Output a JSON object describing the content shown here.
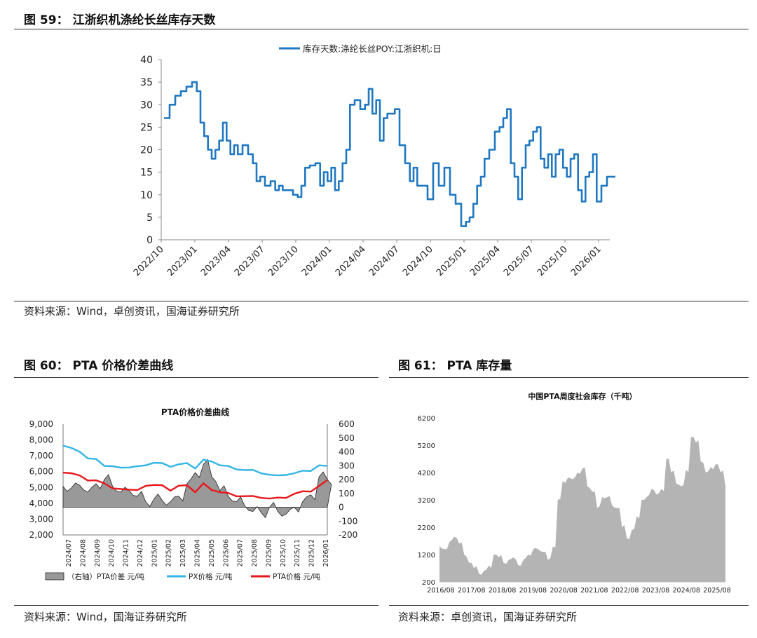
{
  "fig59": {
    "title": "图 59：  江浙织机涤纶长丝库存天数",
    "source": "资料来源：Wind，卓创资讯，国海证券研究所",
    "chart_data": {
      "type": "line",
      "series": [
        {
          "name": "库存天数:涤纶长丝POY:江浙织机:日",
          "color": "#1f78c1",
          "points": [
            [
              "2022/10",
              27
            ],
            [
              "2022/10",
              30
            ],
            [
              "2022/11",
              32
            ],
            [
              "2022/11",
              33
            ],
            [
              "2022/12",
              34
            ],
            [
              "2022/12",
              35
            ],
            [
              "2023/01",
              33
            ],
            [
              "2023/01",
              26
            ],
            [
              "2023/01",
              23
            ],
            [
              "2023/02",
              20
            ],
            [
              "2023/02",
              18
            ],
            [
              "2023/02",
              20
            ],
            [
              "2023/03",
              22
            ],
            [
              "2023/03",
              26
            ],
            [
              "2023/03",
              22
            ],
            [
              "2023/04",
              19
            ],
            [
              "2023/04",
              21
            ],
            [
              "2023/04",
              19
            ],
            [
              "2023/05",
              21
            ],
            [
              "2023/05",
              19
            ],
            [
              "2023/06",
              17
            ],
            [
              "2023/06",
              13
            ],
            [
              "2023/06",
              14
            ],
            [
              "2023/07",
              12
            ],
            [
              "2023/07",
              13
            ],
            [
              "2023/08",
              11
            ],
            [
              "2023/08",
              12
            ],
            [
              "2023/08",
              11
            ],
            [
              "2023/09",
              11
            ],
            [
              "2023/09",
              10
            ],
            [
              "2023/10",
              9.5
            ],
            [
              "2023/10",
              12
            ],
            [
              "2023/10",
              16
            ],
            [
              "2023/11",
              16.5
            ],
            [
              "2023/11",
              17
            ],
            [
              "2023/12",
              12
            ],
            [
              "2023/12",
              15
            ],
            [
              "2023/12",
              13
            ],
            [
              "2024/01",
              16
            ],
            [
              "2024/01",
              11
            ],
            [
              "2024/01",
              13
            ],
            [
              "2024/02",
              17
            ],
            [
              "2024/02",
              20
            ],
            [
              "2024/02",
              30
            ],
            [
              "2024/03",
              31
            ],
            [
              "2024/03",
              29
            ],
            [
              "2024/04",
              30
            ],
            [
              "2024/04",
              33.5
            ],
            [
              "2024/04",
              28
            ],
            [
              "2024/05",
              31
            ],
            [
              "2024/05",
              22
            ],
            [
              "2024/05",
              27
            ],
            [
              "2024/06",
              28
            ],
            [
              "2024/06",
              28
            ],
            [
              "2024/06",
              29
            ],
            [
              "2024/07",
              21
            ],
            [
              "2024/07",
              17
            ],
            [
              "2024/08",
              13
            ],
            [
              "2024/08",
              16
            ],
            [
              "2024/08",
              12
            ],
            [
              "2024/09",
              12
            ],
            [
              "2024/09",
              9
            ],
            [
              "2024/10",
              17
            ],
            [
              "2024/10",
              12
            ],
            [
              "2024/11",
              16
            ],
            [
              "2024/11",
              10
            ],
            [
              "2024/12",
              8
            ],
            [
              "2024/12",
              3
            ],
            [
              "2025/01",
              4
            ],
            [
              "2025/01",
              5
            ],
            [
              "2025/01",
              8
            ],
            [
              "2025/02",
              12
            ],
            [
              "2025/02",
              14
            ],
            [
              "2025/02",
              18
            ],
            [
              "2025/03",
              20
            ],
            [
              "2025/03",
              24
            ],
            [
              "2025/04",
              25
            ],
            [
              "2025/04",
              27
            ],
            [
              "2025/04",
              29
            ],
            [
              "2025/05",
              17
            ],
            [
              "2025/05",
              14
            ],
            [
              "2025/05",
              9
            ],
            [
              "2025/06",
              16
            ],
            [
              "2025/06",
              21
            ],
            [
              "2025/06",
              22
            ],
            [
              "2025/07",
              24
            ],
            [
              "2025/07",
              25
            ],
            [
              "2025/07",
              18
            ],
            [
              "2025/08",
              16
            ],
            [
              "2025/08",
              19
            ],
            [
              "2025/08",
              14
            ],
            [
              "2025/09",
              19
            ],
            [
              "2025/09",
              20
            ],
            [
              "2025/09",
              16
            ],
            [
              "2025/10",
              14
            ],
            [
              "2025/10",
              18
            ],
            [
              "2025/10",
              19
            ],
            [
              "2025/11",
              11
            ],
            [
              "2025/11",
              8.5
            ],
            [
              "2025/11",
              14
            ],
            [
              "2025/12",
              15
            ],
            [
              "2025/12",
              19
            ],
            [
              "2025/12",
              8.5
            ],
            [
              "2026/01",
              12
            ],
            [
              "2026/01",
              14
            ],
            [
              "2026/02",
              14
            ]
          ]
        }
      ],
      "xlabels": [
        "2022/10",
        "2023/01",
        "2023/04",
        "2023/07",
        "2023/10",
        "2024/01",
        "2024/04",
        "2024/07",
        "2024/10",
        "2025/01",
        "2025/04",
        "2025/07",
        "2025/10",
        "2026/01"
      ],
      "ylim": [
        0,
        40
      ],
      "yticks": [
        0,
        5,
        10,
        15,
        20,
        25,
        30,
        35,
        40
      ],
      "legend_position": "top-center",
      "grid": false
    }
  },
  "fig60": {
    "title": "图 60：  PTA 价格价差曲线",
    "source": "资料来源：Wind，国海证券研究所",
    "chart_data": {
      "type": "line",
      "title": "PTA价格价差曲线",
      "left_ylim": [
        2000,
        9000
      ],
      "left_yticks": [
        "2,000",
        "3,000",
        "4,000",
        "5,000",
        "6,000",
        "7,000",
        "8,000",
        "9,000"
      ],
      "right_ylim": [
        -200,
        600
      ],
      "right_yticks": [
        "-200",
        "-100",
        "0",
        "100",
        "200",
        "300",
        "400",
        "500",
        "600"
      ],
      "xlabels": [
        "2024/07",
        "2024/08",
        "2024/09",
        "2024/10",
        "2024/11",
        "2024/12",
        "2025/01",
        "2025/02",
        "2025/03",
        "2025/04",
        "2025/05",
        "2025/06",
        "2025/07",
        "2025/08",
        "2025/09",
        "2025/10",
        "2025/11",
        "2025/12",
        "2026/01"
      ],
      "series": [
        {
          "name": "（右轴）PTA价差  元/吨",
          "axis": "right",
          "type": "area",
          "color": "#999999",
          "values": [
            150,
            140,
            160,
            110,
            170,
            200,
            150,
            110,
            120,
            80,
            40,
            60,
            50,
            40,
            80,
            170,
            250,
            310,
            220,
            120,
            80,
            40,
            10,
            -30,
            -40,
            0,
            -30,
            -50,
            0,
            40,
            90,
            220,
            200
          ]
        },
        {
          "name": "PX价格  元/吨",
          "axis": "left",
          "type": "line",
          "color": "#33b5e5",
          "values": [
            7700,
            7500,
            7200,
            6900,
            6800,
            6300,
            6400,
            6250,
            6200,
            6400,
            6400,
            6500,
            6600,
            6300,
            6400,
            6600,
            6200,
            6700,
            6700,
            6400,
            6300,
            6200,
            6100,
            6050,
            5950,
            5800,
            5700,
            5850,
            5900,
            6000,
            6100,
            6400,
            6300
          ]
        },
        {
          "name": "PTA价格  元/吨",
          "axis": "left",
          "type": "line",
          "color": "#e8171c",
          "values": [
            6000,
            5900,
            5700,
            5500,
            5450,
            5200,
            5000,
            4900,
            4800,
            4900,
            5100,
            5100,
            5200,
            4800,
            5050,
            5200,
            4700,
            5200,
            4900,
            4700,
            4600,
            4500,
            4450,
            4400,
            4400,
            4300,
            4300,
            4400,
            4600,
            4700,
            4800,
            5100,
            5400
          ]
        }
      ],
      "legend_position": "bottom"
    }
  },
  "fig61": {
    "title": "图 61：  PTA 库存量",
    "source": "资料来源：卓创资讯，国海证券研究所",
    "chart_data": {
      "type": "area",
      "title": "中国PTA周度社会库存（千吨）",
      "ylim": [
        200,
        6200
      ],
      "yticks": [
        "200",
        "1200",
        "2200",
        "3200",
        "4200",
        "5200",
        "6200"
      ],
      "xlabels": [
        "2016/08",
        "2017/08",
        "2018/08",
        "2019/08",
        "2020/08",
        "2021/08",
        "2022/08",
        "2023/08",
        "2024/08",
        "2025/08"
      ],
      "series": [
        {
          "name": "中国PTA周度社会库存（千吨）",
          "color": "#b4b4b4",
          "values": [
            1500,
            1400,
            1650,
            1850,
            1600,
            1200,
            900,
            700,
            500,
            600,
            800,
            1200,
            1100,
            900,
            1000,
            1100,
            800,
            1000,
            1200,
            1400,
            1400,
            1300,
            1000,
            1500,
            3200,
            3900,
            4000,
            3950,
            4200,
            4350,
            3700,
            3500,
            2900,
            3300,
            3300,
            3000,
            2900,
            2200,
            1800,
            2100,
            2600,
            3200,
            3300,
            3600,
            3400,
            3600,
            4700,
            4200,
            3800,
            3700,
            4300,
            5500,
            5300,
            4600,
            4200,
            4400,
            4500,
            4200,
            3700
          ]
        }
      ],
      "grid": false
    }
  }
}
